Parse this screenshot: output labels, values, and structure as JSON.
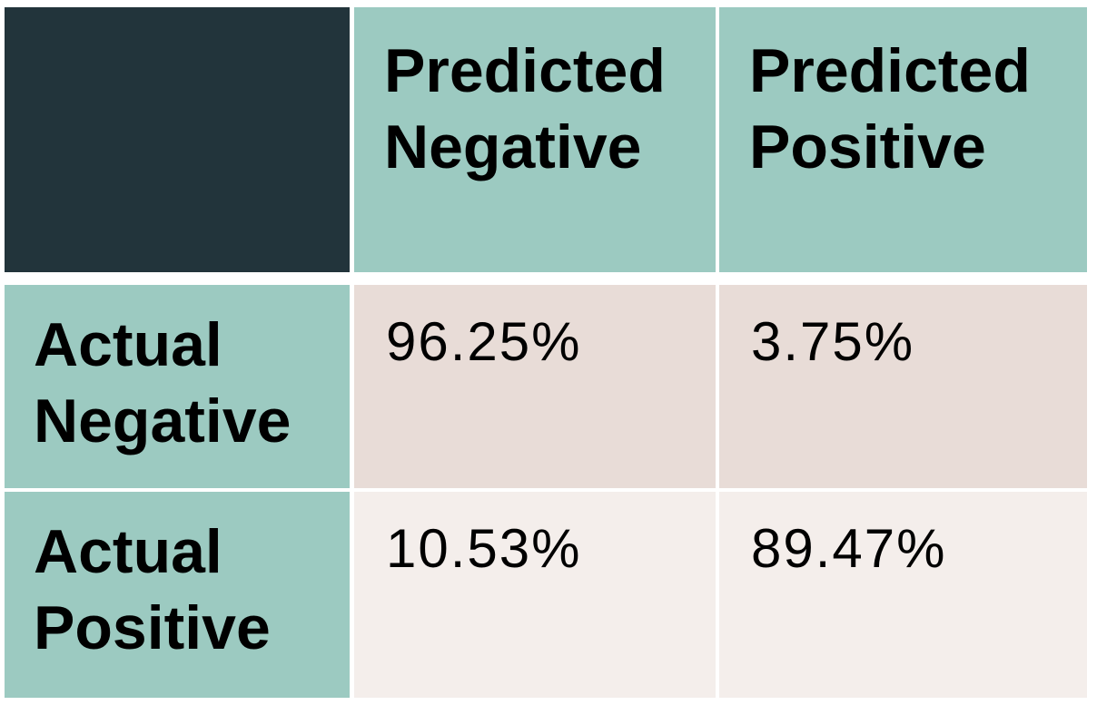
{
  "colors": {
    "corner": "#22343b",
    "header": "#9ccac1",
    "row1_values": "#e8dcd7",
    "row2_values": "#f4eeeb"
  },
  "columns": [
    {
      "line1": "Predicted",
      "line2": "Negative"
    },
    {
      "line1": "Predicted",
      "line2": "Positive"
    }
  ],
  "rows": [
    {
      "line1": "Actual",
      "line2": "Negative",
      "values": [
        "96.25%",
        "3.75%"
      ]
    },
    {
      "line1": "Actual",
      "line2": "Positive",
      "values": [
        "10.53%",
        "89.47%"
      ]
    }
  ]
}
